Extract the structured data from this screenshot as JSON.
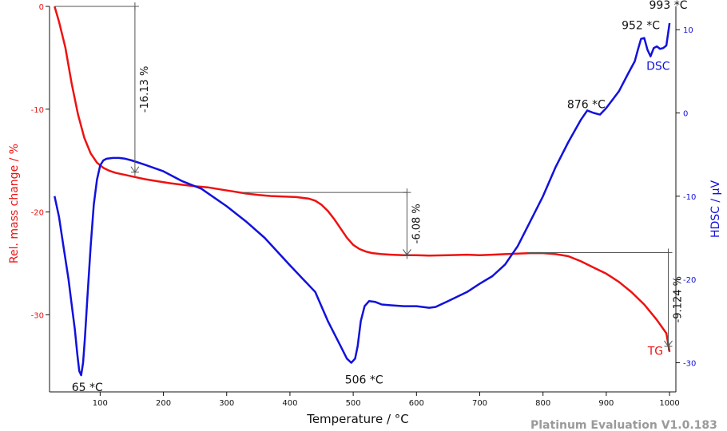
{
  "chart_data": {
    "type": "line",
    "xlabel": "Temperature / °C",
    "ylabel_left": "Rel. mass change / %",
    "ylabel_right": "HDSC / µV",
    "xlim": [
      20,
      1010
    ],
    "ylim_left": [
      -37.5,
      0
    ],
    "ylim_right": [
      -33.5,
      12.8
    ],
    "x_ticks": [
      100,
      200,
      300,
      400,
      500,
      600,
      700,
      800,
      900,
      1000
    ],
    "y_left_ticks": [
      0,
      -10,
      -20,
      -30
    ],
    "y_right_ticks": [
      10,
      0,
      -10,
      -20,
      -30
    ],
    "grid": false,
    "watermark": "Platinum Evaluation V1.0.183",
    "colors": {
      "TG": "#ee1111",
      "DSC": "#1111dd",
      "annotation": "#555555",
      "watermark": "#9a9a9a"
    },
    "series": [
      {
        "name": "TG",
        "axis": "left",
        "x": [
          28,
          35,
          45,
          55,
          65,
          75,
          85,
          95,
          105,
          115,
          125,
          140,
          155,
          170,
          190,
          210,
          230,
          250,
          270,
          290,
          310,
          330,
          350,
          370,
          390,
          410,
          430,
          440,
          450,
          460,
          470,
          480,
          490,
          500,
          510,
          520,
          530,
          545,
          560,
          580,
          600,
          620,
          650,
          680,
          700,
          720,
          740,
          760,
          780,
          800,
          820,
          840,
          860,
          880,
          900,
          920,
          940,
          960,
          980,
          995,
          1000
        ],
        "y": [
          0,
          -1.5,
          -4,
          -7.5,
          -10.5,
          -12.8,
          -14.3,
          -15.2,
          -15.7,
          -16.0,
          -16.2,
          -16.4,
          -16.6,
          -16.8,
          -17.0,
          -17.2,
          -17.35,
          -17.5,
          -17.6,
          -17.8,
          -18.0,
          -18.2,
          -18.35,
          -18.45,
          -18.5,
          -18.55,
          -18.7,
          -18.9,
          -19.3,
          -19.9,
          -20.7,
          -21.6,
          -22.5,
          -23.2,
          -23.6,
          -23.85,
          -24.0,
          -24.1,
          -24.15,
          -24.2,
          -24.2,
          -24.25,
          -24.2,
          -24.15,
          -24.2,
          -24.15,
          -24.1,
          -24.05,
          -24.0,
          -24.0,
          -24.1,
          -24.3,
          -24.8,
          -25.4,
          -26.0,
          -26.8,
          -27.8,
          -29.0,
          -30.5,
          -31.8,
          -33.6
        ]
      },
      {
        "name": "DSC",
        "axis": "right",
        "x": [
          28,
          35,
          42,
          50,
          55,
          60,
          64,
          67,
          70,
          73,
          76,
          80,
          85,
          90,
          95,
          100,
          105,
          110,
          120,
          130,
          140,
          150,
          170,
          200,
          230,
          260,
          300,
          330,
          360,
          400,
          440,
          460,
          480,
          490,
          497,
          503,
          507,
          512,
          518,
          525,
          535,
          545,
          560,
          580,
          600,
          620,
          630,
          650,
          680,
          700,
          720,
          740,
          760,
          780,
          800,
          820,
          840,
          860,
          870,
          880,
          890,
          900,
          920,
          935,
          945,
          950,
          955,
          960,
          965,
          970,
          975,
          980,
          985,
          990,
          995,
          998,
          1000
        ],
        "y": [
          -10,
          -12.5,
          -16,
          -20,
          -23,
          -26,
          -29,
          -31,
          -31.5,
          -30,
          -27,
          -22,
          -16,
          -11,
          -8,
          -6.3,
          -5.7,
          -5.5,
          -5.4,
          -5.4,
          -5.5,
          -5.7,
          -6.2,
          -7.0,
          -8.2,
          -9.1,
          -11.2,
          -13.0,
          -15.0,
          -18.3,
          -21.5,
          -25.0,
          -28.0,
          -29.5,
          -30.0,
          -29.5,
          -28.0,
          -25.0,
          -23.2,
          -22.6,
          -22.7,
          -23.0,
          -23.1,
          -23.2,
          -23.2,
          -23.4,
          -23.3,
          -22.6,
          -21.5,
          -20.5,
          -19.6,
          -18.2,
          -16.0,
          -13.0,
          -10.0,
          -6.5,
          -3.5,
          -0.8,
          0.3,
          0.0,
          -0.2,
          0.6,
          2.6,
          4.8,
          6.2,
          7.6,
          8.9,
          9.0,
          7.6,
          6.8,
          7.8,
          8.0,
          7.7,
          7.8,
          8.1,
          9.7,
          10.8
        ]
      }
    ],
    "annotations": {
      "peaks": [
        {
          "label": "65 *C",
          "x": 67,
          "y": -31.5,
          "axis": "right"
        },
        {
          "label": "506 *C",
          "x": 507,
          "y": -30.0,
          "axis": "right"
        },
        {
          "label": "876 *C",
          "x": 876,
          "y": 0.2,
          "axis": "right"
        },
        {
          "label": "952 *C",
          "x": 952,
          "y": 8.9,
          "axis": "right"
        },
        {
          "label": "993 *C",
          "x": 998,
          "y": 10.8,
          "axis": "right"
        }
      ],
      "steps": [
        {
          "label": "-16.13 %",
          "x_start": 28,
          "x_end": 155,
          "y_start": 0,
          "y_end": -16.13
        },
        {
          "label": "-6.08 %",
          "x_start": 325,
          "x_end": 585,
          "y_start": -18.1,
          "y_end": -24.18
        },
        {
          "label": "-9.124 %",
          "x_start": 775,
          "x_end": 998,
          "y_start": -23.95,
          "y_end": -33.07
        }
      ],
      "series_labels": [
        {
          "label": "DSC",
          "series": "DSC"
        },
        {
          "label": "TG",
          "series": "TG"
        }
      ]
    }
  }
}
